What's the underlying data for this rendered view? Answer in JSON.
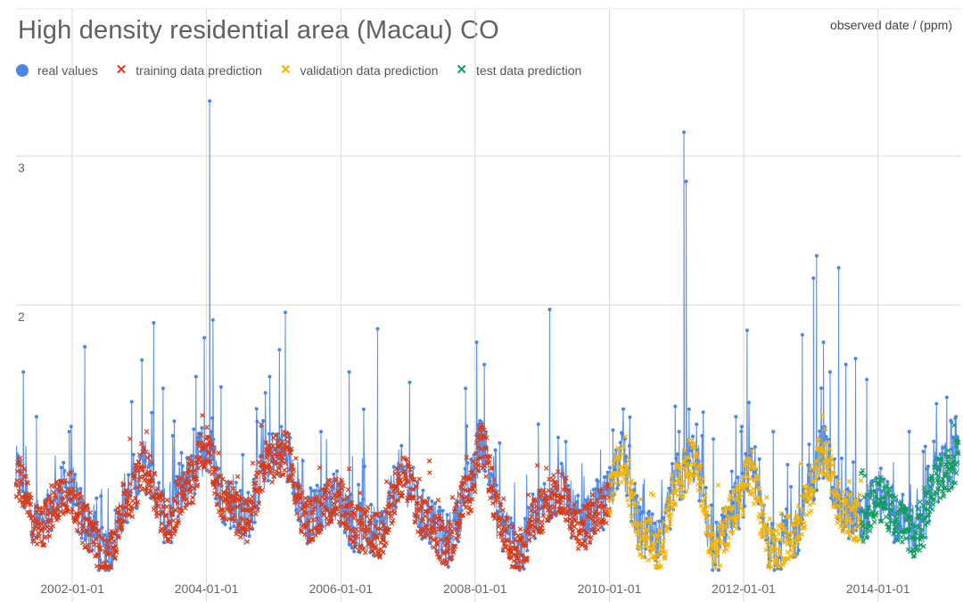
{
  "chart_data": {
    "type": "line",
    "title": "High density residential area (Macau) CO",
    "axis_title": "observed date / (ppm)",
    "legend_position": "top-left",
    "grid": true,
    "x_axis": {
      "type": "date",
      "ticks": [
        "2002-01-01",
        "2004-01-01",
        "2006-01-01",
        "2008-01-01",
        "2010-01-01",
        "2012-01-01",
        "2014-01-01"
      ],
      "range": [
        "2001-03-01",
        "2015-03-15"
      ]
    },
    "y_axis": {
      "ticks": [
        {
          "value": 3,
          "label": "3"
        },
        {
          "value": 2,
          "label": "2"
        }
      ],
      "range": [
        0.2,
        3.5
      ]
    },
    "series": [
      {
        "name": "real values",
        "marker": "circle",
        "color": "#4a86e8",
        "line": true,
        "baseline": [
          [
            "2001-03-01",
            0.85
          ],
          [
            "2001-07-01",
            0.5
          ],
          [
            "2001-12-01",
            0.75
          ],
          [
            "2002-04-01",
            0.5
          ],
          [
            "2002-07-01",
            0.28
          ],
          [
            "2002-11-01",
            0.7
          ],
          [
            "2003-02-01",
            0.9
          ],
          [
            "2003-06-01",
            0.55
          ],
          [
            "2003-10-01",
            0.8
          ],
          [
            "2004-01-01",
            1.05
          ],
          [
            "2004-04-01",
            0.7
          ],
          [
            "2004-08-01",
            0.55
          ],
          [
            "2004-12-01",
            0.95
          ],
          [
            "2005-03-01",
            1.0
          ],
          [
            "2005-07-01",
            0.55
          ],
          [
            "2005-12-01",
            0.7
          ],
          [
            "2006-04-01",
            0.5
          ],
          [
            "2006-08-01",
            0.45
          ],
          [
            "2006-12-01",
            0.85
          ],
          [
            "2007-04-01",
            0.55
          ],
          [
            "2007-08-01",
            0.4
          ],
          [
            "2007-12-01",
            0.75
          ],
          [
            "2008-02-01",
            1.05
          ],
          [
            "2008-06-01",
            0.5
          ],
          [
            "2008-09-01",
            0.3
          ],
          [
            "2008-12-01",
            0.6
          ],
          [
            "2009-04-01",
            0.75
          ],
          [
            "2009-08-01",
            0.5
          ],
          [
            "2009-12-01",
            0.65
          ],
          [
            "2010-03-01",
            0.95
          ],
          [
            "2010-07-01",
            0.45
          ],
          [
            "2010-10-01",
            0.35
          ],
          [
            "2011-01-01",
            0.8
          ],
          [
            "2011-04-01",
            0.95
          ],
          [
            "2011-08-01",
            0.35
          ],
          [
            "2011-12-01",
            0.65
          ],
          [
            "2012-02-01",
            0.85
          ],
          [
            "2012-06-01",
            0.35
          ],
          [
            "2012-10-01",
            0.45
          ],
          [
            "2013-01-01",
            0.75
          ],
          [
            "2013-03-01",
            1.0
          ],
          [
            "2013-07-01",
            0.6
          ],
          [
            "2013-10-01",
            0.55
          ],
          [
            "2014-01-01",
            0.7
          ],
          [
            "2014-05-01",
            0.55
          ],
          [
            "2014-08-01",
            0.45
          ],
          [
            "2014-12-01",
            0.85
          ],
          [
            "2015-03-15",
            0.95
          ]
        ],
        "spikes": [
          [
            "2001-04-10",
            1.55
          ],
          [
            "2001-06-20",
            1.25
          ],
          [
            "2001-12-15",
            1.15
          ],
          [
            "2002-03-10",
            1.72
          ],
          [
            "2002-11-20",
            1.35
          ],
          [
            "2003-01-15",
            1.63
          ],
          [
            "2003-03-20",
            1.88
          ],
          [
            "2003-05-10",
            1.44
          ],
          [
            "2003-11-05",
            1.52
          ],
          [
            "2003-12-20",
            1.78
          ],
          [
            "2004-01-18",
            3.37
          ],
          [
            "2004-02-05",
            1.9
          ],
          [
            "2004-03-20",
            1.45
          ],
          [
            "2004-12-10",
            1.52
          ],
          [
            "2005-02-01",
            1.7
          ],
          [
            "2005-03-05",
            1.95
          ],
          [
            "2006-02-15",
            1.55
          ],
          [
            "2006-05-05",
            1.3
          ],
          [
            "2006-07-20",
            1.84
          ],
          [
            "2007-01-10",
            1.48
          ],
          [
            "2007-11-10",
            1.44
          ],
          [
            "2008-01-10",
            1.75
          ],
          [
            "2008-02-20",
            1.6
          ],
          [
            "2008-12-10",
            1.2
          ],
          [
            "2009-02-10",
            1.97
          ],
          [
            "2010-01-20",
            1.16
          ],
          [
            "2010-12-25",
            1.32
          ],
          [
            "2011-01-15",
            1.15
          ],
          [
            "2011-02-10",
            3.16
          ],
          [
            "2011-02-22",
            2.83
          ],
          [
            "2011-03-10",
            1.3
          ],
          [
            "2011-07-20",
            1.1
          ],
          [
            "2011-11-20",
            1.25
          ],
          [
            "2012-01-20",
            1.83
          ],
          [
            "2012-06-10",
            1.15
          ],
          [
            "2012-11-15",
            1.8
          ],
          [
            "2013-01-15",
            2.18
          ],
          [
            "2013-02-01",
            2.33
          ],
          [
            "2013-03-10",
            1.75
          ],
          [
            "2013-04-15",
            1.55
          ],
          [
            "2013-06-01",
            2.25
          ],
          [
            "2013-07-10",
            1.6
          ],
          [
            "2013-09-01",
            1.64
          ],
          [
            "2013-11-01",
            1.5
          ],
          [
            "2014-06-20",
            1.15
          ],
          [
            "2014-09-15",
            1.05
          ],
          [
            "2015-01-10",
            1.38
          ],
          [
            "2015-03-01",
            1.25
          ]
        ]
      },
      {
        "name": "training data prediction",
        "marker": "x",
        "color": "#dc3912",
        "range": [
          "2001-03-01",
          "2010-01-01"
        ]
      },
      {
        "name": "validation data prediction",
        "marker": "x",
        "color": "#f4b400",
        "range": [
          "2010-01-01",
          "2013-10-01"
        ]
      },
      {
        "name": "test data prediction",
        "marker": "x",
        "color": "#0f9d58",
        "range": [
          "2013-10-01",
          "2015-03-15"
        ]
      }
    ]
  }
}
